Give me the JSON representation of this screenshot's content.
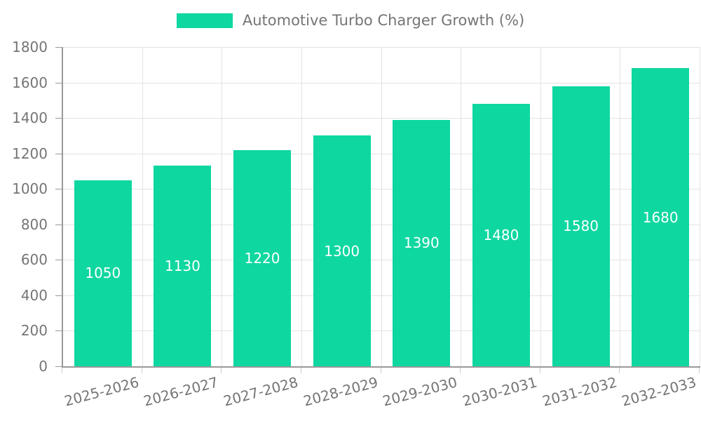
{
  "chart_data": {
    "type": "bar",
    "title": "Automotive Turbo Charger Growth (%)",
    "categories": [
      "2025-2026",
      "2026-2027",
      "2027-2028",
      "2028-2029",
      "2029-2030",
      "2030-2031",
      "2031-2032",
      "2032-2033"
    ],
    "values": [
      1050,
      1130,
      1220,
      1300,
      1390,
      1480,
      1580,
      1680
    ],
    "xlabel": "",
    "ylabel": "",
    "ylim": [
      0,
      1800
    ],
    "ytick_step": 200,
    "ytick_labels": [
      "0",
      "200",
      "400",
      "600",
      "800",
      "1000",
      "1200",
      "1400",
      "1600",
      "1800"
    ],
    "grid": true,
    "legend_position": "top-center",
    "bar_labels_shown_inside_bars": true,
    "colors": {
      "bar": "#0ed7a0",
      "bar_value_text": "#ffffff",
      "axis_line": "#999999",
      "gridline": "#e3e3e3",
      "tick_text": "#757575",
      "legend_text": "#757575"
    }
  }
}
